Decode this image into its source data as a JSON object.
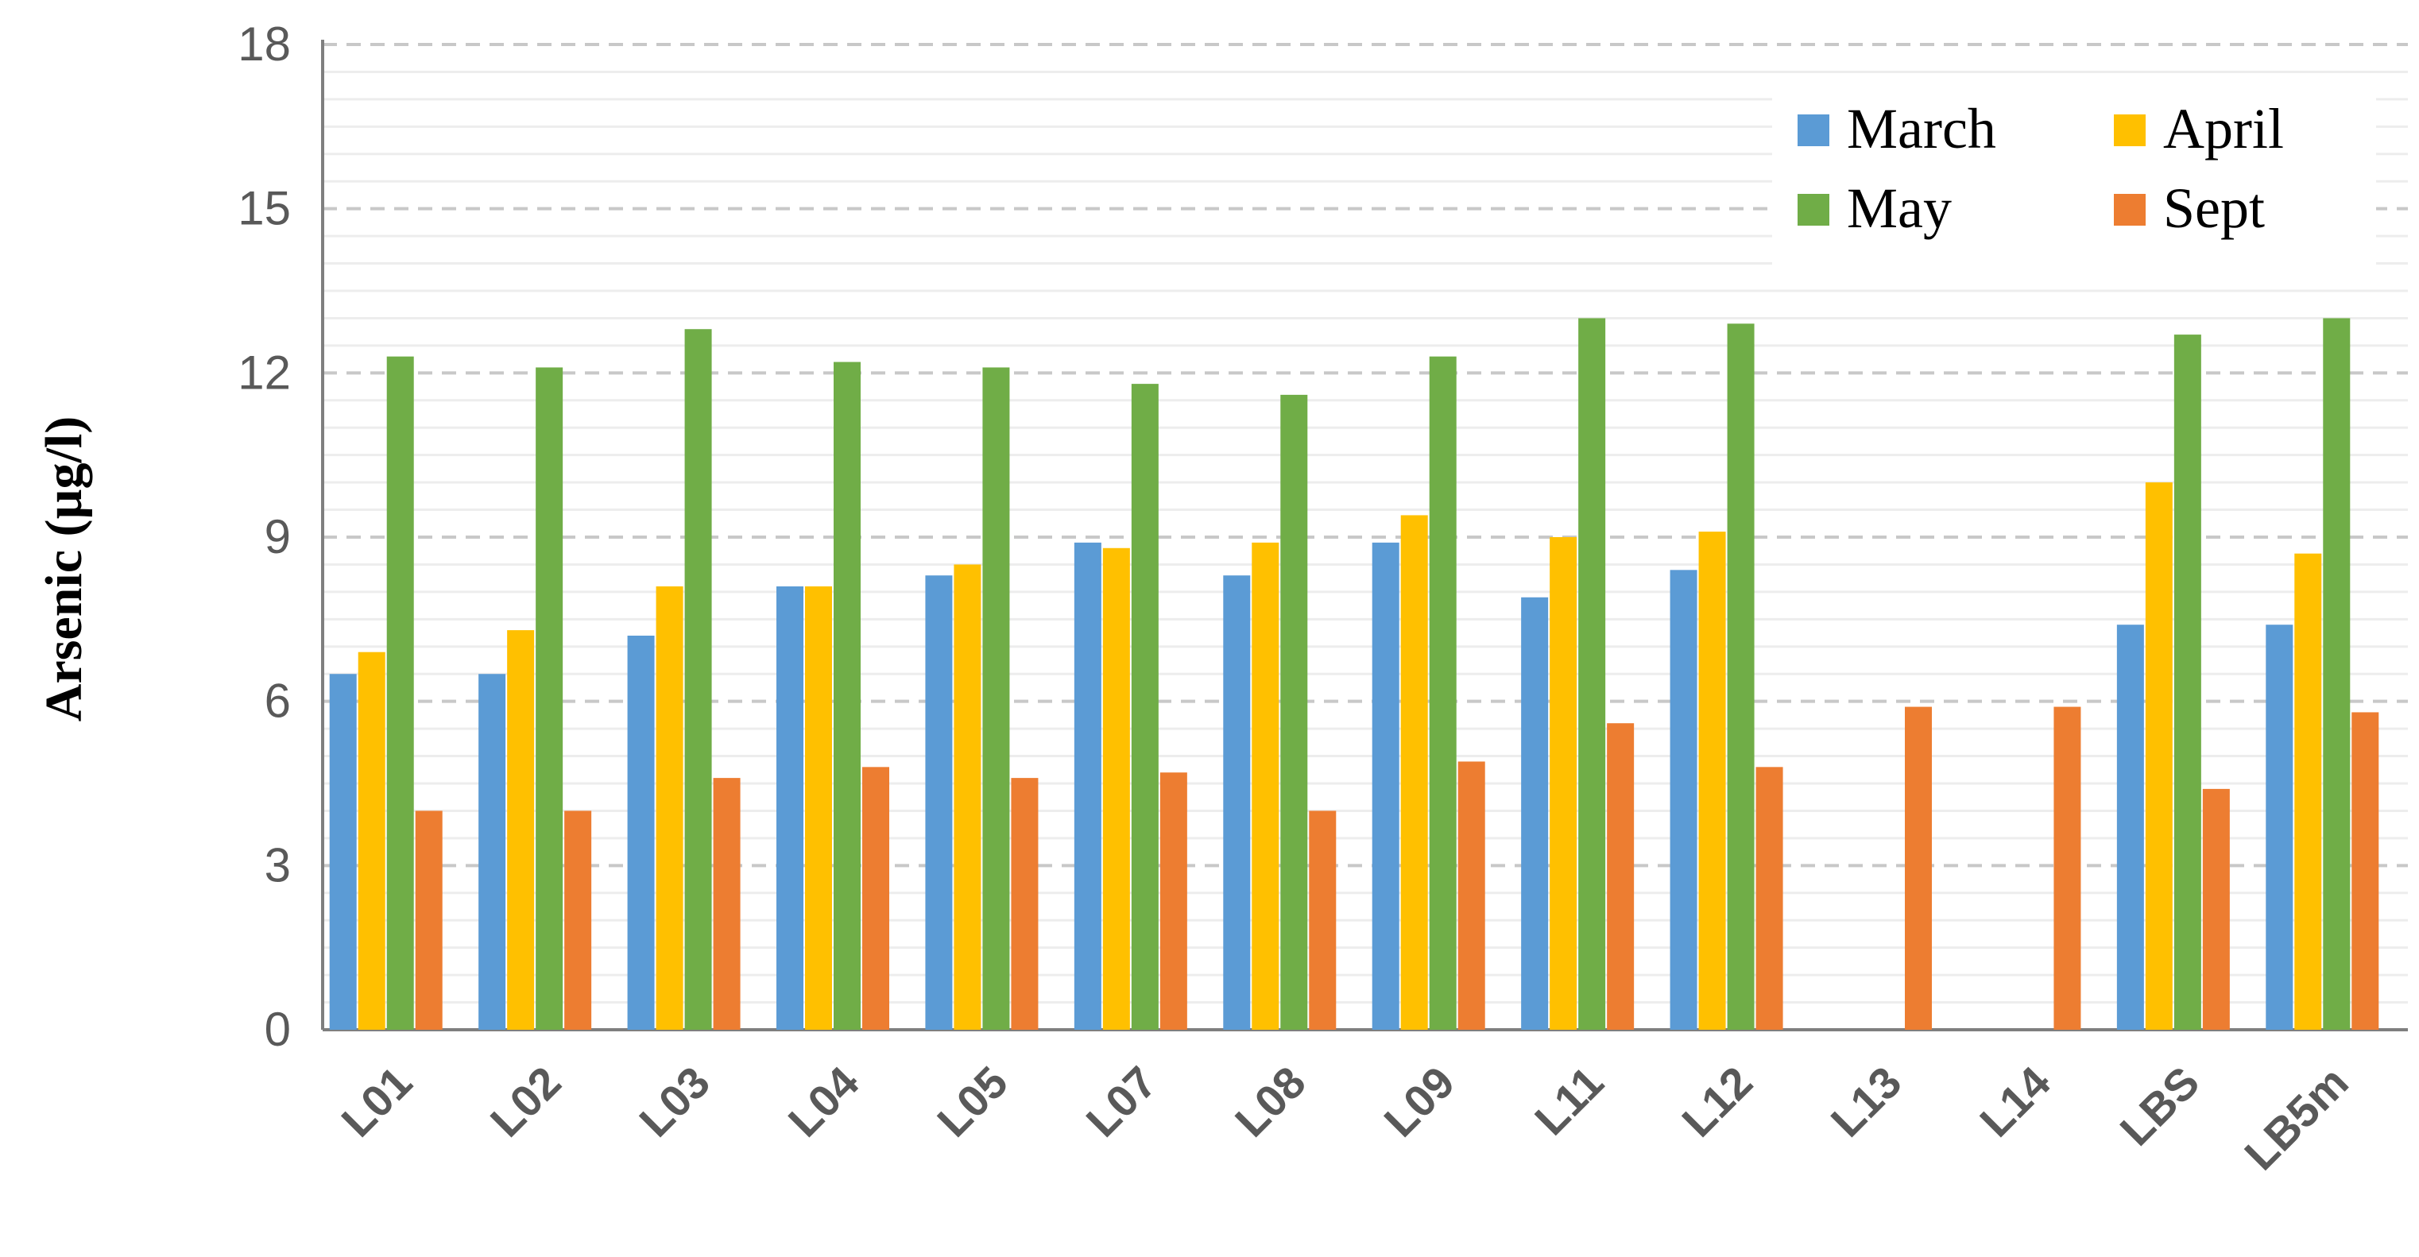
{
  "chart_data": {
    "type": "bar",
    "title": "",
    "xlabel": "",
    "ylabel": "Arsenic (µg/l)",
    "ylim": [
      0,
      18
    ],
    "yticks": [
      0,
      3,
      6,
      9,
      12,
      15,
      18
    ],
    "grid": true,
    "legend_position": "top-right",
    "categories": [
      "L01",
      "L02",
      "L03",
      "L04",
      "L05",
      "L07",
      "L08",
      "L09",
      "L11",
      "L12",
      "L13",
      "L14",
      "LBS",
      "LB5m"
    ],
    "series": [
      {
        "name": "March",
        "color": "#5B9BD5",
        "values": [
          6.5,
          6.5,
          7.2,
          8.1,
          8.3,
          8.9,
          8.3,
          8.9,
          7.9,
          8.4,
          null,
          null,
          7.4,
          7.4
        ]
      },
      {
        "name": "April",
        "color": "#FFC000",
        "values": [
          6.9,
          7.3,
          8.1,
          8.1,
          8.5,
          8.8,
          8.9,
          9.4,
          9.0,
          9.1,
          null,
          null,
          10.0,
          8.7
        ]
      },
      {
        "name": "May",
        "color": "#70AD47",
        "values": [
          12.3,
          12.1,
          12.8,
          12.2,
          12.1,
          11.8,
          11.6,
          12.3,
          13.0,
          12.9,
          null,
          null,
          12.7,
          13.0
        ]
      },
      {
        "name": "Sept",
        "color": "#ED7D31",
        "values": [
          4.0,
          4.0,
          4.6,
          4.8,
          4.6,
          4.7,
          4.0,
          4.9,
          5.6,
          4.8,
          5.9,
          5.9,
          4.4,
          5.8
        ]
      }
    ],
    "legend_order": [
      "March",
      "April",
      "May",
      "Sept"
    ]
  }
}
